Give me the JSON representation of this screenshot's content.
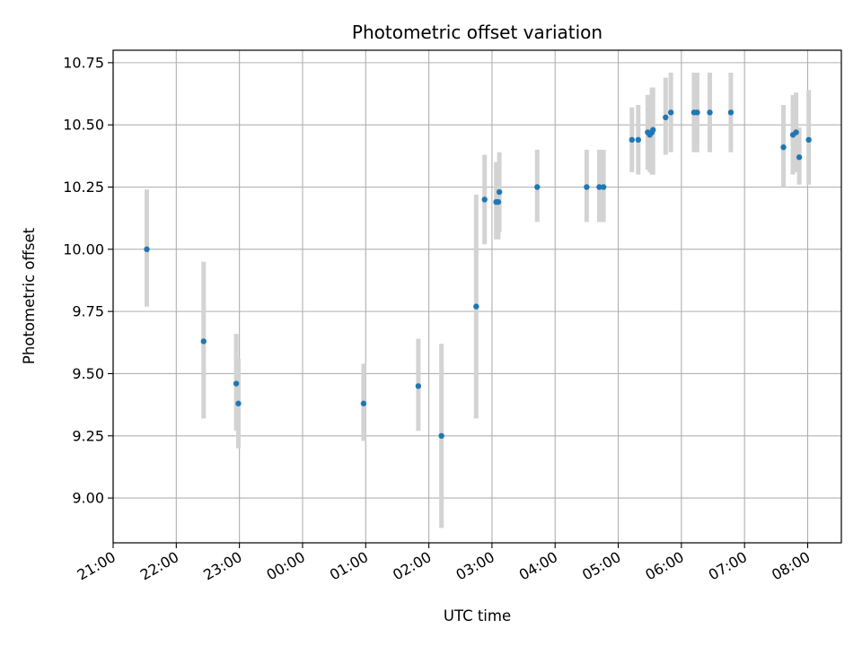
{
  "chart_data": {
    "type": "scatter",
    "title": "Photometric offset variation",
    "xlabel": "UTC time",
    "ylabel": "Photometric offset",
    "x_unit": "hours (UTC, clock time across midnight)",
    "xlim": [
      "21:00",
      "08:32"
    ],
    "ylim": [
      8.82,
      10.8
    ],
    "grid": true,
    "colors": {
      "point": "#1f77b4",
      "errorbar": "#d3d3d3",
      "grid": "#b0b0b0"
    },
    "x_ticks": [
      "21:00",
      "22:00",
      "23:00",
      "00:00",
      "01:00",
      "02:00",
      "03:00",
      "04:00",
      "05:00",
      "06:00",
      "07:00",
      "08:00"
    ],
    "y_ticks": [
      "9.00",
      "9.25",
      "9.50",
      "9.75",
      "10.00",
      "10.25",
      "10.50",
      "10.75"
    ],
    "points": [
      {
        "x": "21:32",
        "y": 10.0,
        "ylo": 9.77,
        "yhi": 10.24
      },
      {
        "x": "22:26",
        "y": 9.63,
        "ylo": 9.32,
        "yhi": 9.95
      },
      {
        "x": "22:57",
        "y": 9.46,
        "ylo": 9.27,
        "yhi": 9.66
      },
      {
        "x": "22:59",
        "y": 9.38,
        "ylo": 9.2,
        "yhi": 9.56
      },
      {
        "x": "00:58",
        "y": 9.38,
        "ylo": 9.23,
        "yhi": 9.54
      },
      {
        "x": "01:50",
        "y": 9.45,
        "ylo": 9.27,
        "yhi": 9.64
      },
      {
        "x": "02:12",
        "y": 9.25,
        "ylo": 8.88,
        "yhi": 9.62
      },
      {
        "x": "02:45",
        "y": 9.77,
        "ylo": 9.32,
        "yhi": 10.22
      },
      {
        "x": "02:53",
        "y": 10.2,
        "ylo": 10.02,
        "yhi": 10.38
      },
      {
        "x": "03:04",
        "y": 10.19,
        "ylo": 10.04,
        "yhi": 10.35
      },
      {
        "x": "03:06",
        "y": 10.19,
        "ylo": 10.04,
        "yhi": 10.35
      },
      {
        "x": "03:07",
        "y": 10.23,
        "ylo": 10.07,
        "yhi": 10.39
      },
      {
        "x": "03:43",
        "y": 10.25,
        "ylo": 10.11,
        "yhi": 10.4
      },
      {
        "x": "04:30",
        "y": 10.25,
        "ylo": 10.11,
        "yhi": 10.4
      },
      {
        "x": "04:42",
        "y": 10.25,
        "ylo": 10.11,
        "yhi": 10.4
      },
      {
        "x": "04:46",
        "y": 10.25,
        "ylo": 10.11,
        "yhi": 10.4
      },
      {
        "x": "05:13",
        "y": 10.44,
        "ylo": 10.31,
        "yhi": 10.57
      },
      {
        "x": "05:19",
        "y": 10.44,
        "ylo": 10.3,
        "yhi": 10.58
      },
      {
        "x": "05:28",
        "y": 10.47,
        "ylo": 10.32,
        "yhi": 10.62
      },
      {
        "x": "05:30",
        "y": 10.46,
        "ylo": 10.31,
        "yhi": 10.62
      },
      {
        "x": "05:32",
        "y": 10.47,
        "ylo": 10.3,
        "yhi": 10.65
      },
      {
        "x": "05:33",
        "y": 10.48,
        "ylo": 10.3,
        "yhi": 10.65
      },
      {
        "x": "05:45",
        "y": 10.53,
        "ylo": 10.38,
        "yhi": 10.69
      },
      {
        "x": "05:50",
        "y": 10.55,
        "ylo": 10.39,
        "yhi": 10.71
      },
      {
        "x": "06:12",
        "y": 10.55,
        "ylo": 10.39,
        "yhi": 10.71
      },
      {
        "x": "06:15",
        "y": 10.55,
        "ylo": 10.39,
        "yhi": 10.71
      },
      {
        "x": "06:27",
        "y": 10.55,
        "ylo": 10.39,
        "yhi": 10.71
      },
      {
        "x": "06:47",
        "y": 10.55,
        "ylo": 10.39,
        "yhi": 10.71
      },
      {
        "x": "07:37",
        "y": 10.41,
        "ylo": 10.25,
        "yhi": 10.58
      },
      {
        "x": "07:46",
        "y": 10.46,
        "ylo": 10.3,
        "yhi": 10.62
      },
      {
        "x": "07:49",
        "y": 10.47,
        "ylo": 10.31,
        "yhi": 10.63
      },
      {
        "x": "07:52",
        "y": 10.37,
        "ylo": 10.26,
        "yhi": 10.49
      },
      {
        "x": "08:01",
        "y": 10.44,
        "ylo": 10.26,
        "yhi": 10.64
      }
    ]
  }
}
